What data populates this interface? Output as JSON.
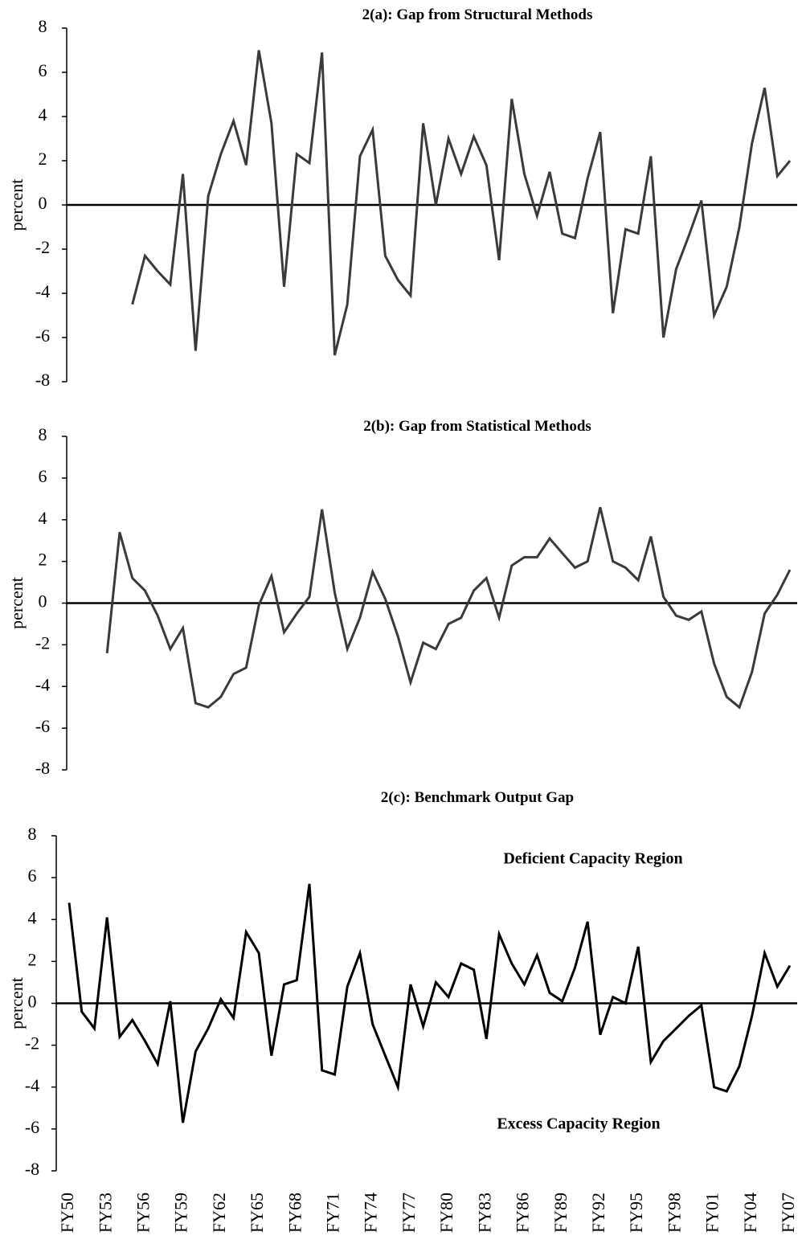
{
  "chart_data": [
    {
      "type": "line",
      "title": "2(a): Gap from Structural Methods",
      "y_label": "percent",
      "color": "#3a3a3a",
      "ylim": [
        -8,
        8
      ],
      "yticks": [
        -8,
        -6,
        -4,
        -2,
        0,
        2,
        4,
        6,
        8
      ],
      "values": [
        null,
        null,
        null,
        null,
        null,
        -4.5,
        -2.3,
        -3.0,
        -3.6,
        1.4,
        -6.6,
        0.4,
        2.3,
        3.8,
        1.8,
        7.0,
        3.7,
        -3.7,
        2.3,
        1.9,
        6.9,
        -6.8,
        -4.5,
        2.2,
        3.4,
        -2.3,
        -3.4,
        -4.1,
        3.7,
        0.0,
        3.0,
        1.4,
        3.1,
        1.8,
        -2.5,
        4.8,
        1.4,
        -0.5,
        1.5,
        -1.3,
        -1.5,
        1.2,
        3.3,
        -4.9,
        -1.1,
        -1.3,
        2.2,
        -6.0,
        -2.9,
        -1.4,
        0.2,
        -5.0,
        -3.7,
        -1.0,
        2.8,
        5.3,
        1.3,
        2.0
      ]
    },
    {
      "type": "line",
      "title": "2(b): Gap from Statistical Methods",
      "y_label": "percent",
      "color": "#3a3a3a",
      "ylim": [
        -8,
        8
      ],
      "yticks": [
        -8,
        -6,
        -4,
        -2,
        0,
        2,
        4,
        6,
        8
      ],
      "values": [
        null,
        null,
        null,
        -2.4,
        3.4,
        1.2,
        0.6,
        -0.6,
        -2.2,
        -1.2,
        -4.8,
        -5.0,
        -4.5,
        -3.4,
        -3.1,
        -0.1,
        1.3,
        -1.4,
        -0.5,
        0.3,
        4.5,
        0.5,
        -2.2,
        -0.7,
        1.5,
        0.2,
        -1.6,
        -3.8,
        -1.9,
        -2.2,
        -1.0,
        -0.7,
        0.6,
        1.2,
        -0.7,
        1.8,
        2.2,
        2.2,
        3.1,
        2.4,
        1.7,
        2.0,
        4.6,
        2.0,
        1.7,
        1.1,
        3.2,
        0.3,
        -0.6,
        -0.8,
        -0.4,
        -2.9,
        -4.5,
        -5.0,
        -3.3,
        -0.5,
        0.4,
        1.6
      ]
    },
    {
      "type": "line",
      "title": "2(c): Benchmark  Output Gap",
      "y_label": "percent",
      "color": "#000000",
      "ylim": [
        -8,
        8
      ],
      "yticks": [
        -8,
        -6,
        -4,
        -2,
        0,
        2,
        4,
        6,
        8
      ],
      "annotations": [
        "Deficient  Capacity  Region",
        "Excess Capacity Region"
      ],
      "categories": [
        "FY50",
        null,
        null,
        "FY53",
        null,
        null,
        "FY56",
        null,
        null,
        "FY59",
        null,
        null,
        "FY62",
        null,
        null,
        "FY65",
        null,
        null,
        "FY68",
        null,
        null,
        "FY71",
        null,
        null,
        "FY74",
        null,
        null,
        "FY77",
        null,
        null,
        "FY80",
        null,
        null,
        "FY83",
        null,
        null,
        "FY86",
        null,
        null,
        "FY89",
        null,
        null,
        "FY92",
        null,
        null,
        "FY95",
        null,
        null,
        "FY98",
        null,
        null,
        "FY01",
        null,
        null,
        "FY04",
        null,
        null,
        "FY07"
      ],
      "values": [
        4.8,
        -0.4,
        -1.2,
        4.1,
        -1.6,
        -0.8,
        -1.8,
        -2.9,
        0.1,
        -5.7,
        -2.3,
        -1.2,
        0.2,
        -0.7,
        3.4,
        2.4,
        -2.5,
        0.9,
        1.1,
        5.7,
        -3.2,
        -3.4,
        0.8,
        2.4,
        -1.0,
        -2.5,
        -4.0,
        0.9,
        -1.1,
        1.0,
        0.3,
        1.9,
        1.6,
        -1.7,
        3.3,
        1.9,
        0.9,
        2.3,
        0.5,
        0.1,
        1.7,
        3.9,
        -1.5,
        0.3,
        0.0,
        2.7,
        -2.8,
        -1.8,
        -1.2,
        -0.6,
        -0.1,
        -4.0,
        -4.2,
        -3.0,
        -0.6,
        2.4,
        0.8,
        1.8
      ]
    }
  ]
}
